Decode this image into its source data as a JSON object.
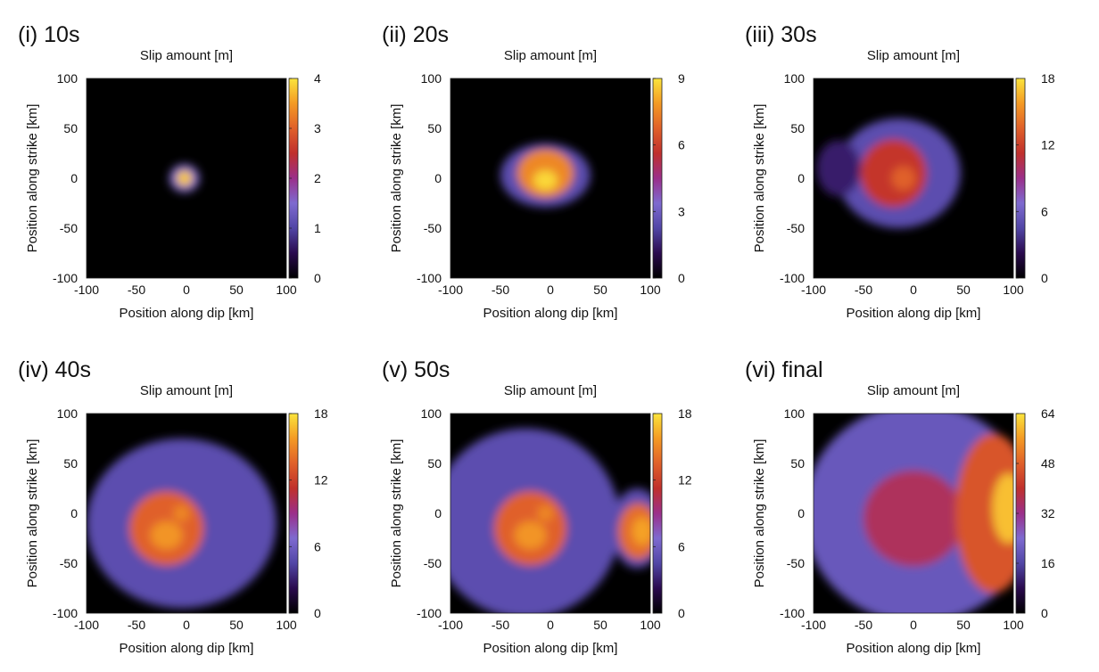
{
  "figure": {
    "colormap": [
      "#000000",
      "#2a0a4e",
      "#5146a6",
      "#7e6ad0",
      "#9b2f8a",
      "#c0302c",
      "#e0602a",
      "#f49a24",
      "#fbe43c"
    ]
  },
  "chart_data": [
    {
      "type": "heatmap",
      "panel_title": "(i) 10s",
      "title": "Slip amount [m]",
      "xlabel": "Position along dip [km]",
      "ylabel": "Position along strike [km]",
      "xlim": [
        -100,
        100
      ],
      "ylim": [
        -100,
        100
      ],
      "xticks": [
        "-100",
        "-50",
        "0",
        "50",
        "100"
      ],
      "yticks": [
        "100",
        "50",
        "0",
        "-50",
        "-100"
      ],
      "colorbar": {
        "range": [
          0,
          4
        ],
        "ticks": [
          "4",
          "3",
          "2",
          "1",
          "0"
        ]
      },
      "features": [
        {
          "kind": "halo",
          "center": [
            -2,
            0
          ],
          "radius": [
            15,
            14
          ],
          "level": 1.5
        },
        {
          "kind": "core",
          "center": [
            -2,
            0
          ],
          "radius": [
            8,
            8
          ],
          "level": 3.8
        }
      ]
    },
    {
      "type": "heatmap",
      "panel_title": "(ii) 20s",
      "title": "Slip amount [m]",
      "xlabel": "Position along dip [km]",
      "ylabel": "Position along strike [km]",
      "xlim": [
        -100,
        100
      ],
      "ylim": [
        -100,
        100
      ],
      "xticks": [
        "-100",
        "-50",
        "0",
        "50",
        "100"
      ],
      "yticks": [
        "100",
        "50",
        "0",
        "-50",
        "-100"
      ],
      "colorbar": {
        "range": [
          0,
          9
        ],
        "ticks": [
          "9",
          "6",
          "3",
          "0"
        ]
      },
      "features": [
        {
          "kind": "halo",
          "center": [
            -5,
            3
          ],
          "radius": [
            45,
            32
          ],
          "level": 2.5
        },
        {
          "kind": "core",
          "center": [
            -5,
            5
          ],
          "radius": [
            28,
            24
          ],
          "level": 7.5
        },
        {
          "kind": "peak",
          "center": [
            -5,
            -2
          ],
          "radius": [
            12,
            10
          ],
          "level": 8.8
        }
      ]
    },
    {
      "type": "heatmap",
      "panel_title": "(iii) 30s",
      "title": "Slip amount [m]",
      "xlabel": "Position along dip [km]",
      "ylabel": "Position along strike [km]",
      "xlim": [
        -100,
        100
      ],
      "ylim": [
        -100,
        100
      ],
      "xticks": [
        "-100",
        "-50",
        "0",
        "50",
        "100"
      ],
      "yticks": [
        "100",
        "50",
        "0",
        "-50",
        "-100"
      ],
      "colorbar": {
        "range": [
          0,
          18
        ],
        "ticks": [
          "18",
          "12",
          "6",
          "0"
        ]
      },
      "features": [
        {
          "kind": "halo",
          "center": [
            -15,
            5
          ],
          "radius": [
            62,
            55
          ],
          "level": 5
        },
        {
          "kind": "halo",
          "center": [
            -75,
            10
          ],
          "radius": [
            22,
            28
          ],
          "level": 3
        },
        {
          "kind": "core",
          "center": [
            -20,
            5
          ],
          "radius": [
            33,
            34
          ],
          "level": 11.5
        },
        {
          "kind": "peak",
          "center": [
            -10,
            0
          ],
          "radius": [
            12,
            12
          ],
          "level": 13.5
        }
      ]
    },
    {
      "type": "heatmap",
      "panel_title": "(iv) 40s",
      "title": "Slip amount [m]",
      "xlabel": "Position along dip [km]",
      "ylabel": "Position along strike [km]",
      "xlim": [
        -100,
        100
      ],
      "ylim": [
        -100,
        100
      ],
      "xticks": [
        "-100",
        "-50",
        "0",
        "50",
        "100"
      ],
      "yticks": [
        "100",
        "50",
        "0",
        "-50",
        "-100"
      ],
      "colorbar": {
        "range": [
          0,
          18
        ],
        "ticks": [
          "18",
          "12",
          "6",
          "0"
        ]
      },
      "features": [
        {
          "kind": "halo",
          "center": [
            -5,
            -10
          ],
          "radius": [
            95,
            85
          ],
          "level": 5
        },
        {
          "kind": "core",
          "center": [
            -20,
            -15
          ],
          "radius": [
            37,
            37
          ],
          "level": 13.5
        },
        {
          "kind": "peak",
          "center": [
            -20,
            -22
          ],
          "radius": [
            16,
            14
          ],
          "level": 15.5
        },
        {
          "kind": "peak",
          "center": [
            -5,
            0
          ],
          "radius": [
            8,
            8
          ],
          "level": 15
        }
      ]
    },
    {
      "type": "heatmap",
      "panel_title": "(v) 50s",
      "title": "Slip amount [m]",
      "xlabel": "Position along dip [km]",
      "ylabel": "Position along strike [km]",
      "xlim": [
        -100,
        100
      ],
      "ylim": [
        -100,
        100
      ],
      "xticks": [
        "-100",
        "-50",
        "0",
        "50",
        "100"
      ],
      "yticks": [
        "100",
        "50",
        "0",
        "-50",
        "-100"
      ],
      "colorbar": {
        "range": [
          0,
          18
        ],
        "ticks": [
          "18",
          "12",
          "6",
          "0"
        ]
      },
      "features": [
        {
          "kind": "halo",
          "center": [
            -25,
            -10
          ],
          "radius": [
            95,
            95
          ],
          "level": 5
        },
        {
          "kind": "core",
          "center": [
            -20,
            -15
          ],
          "radius": [
            36,
            37
          ],
          "level": 13.5
        },
        {
          "kind": "peak",
          "center": [
            -20,
            -22
          ],
          "radius": [
            16,
            14
          ],
          "level": 15.5
        },
        {
          "kind": "peak",
          "center": [
            -5,
            0
          ],
          "radius": [
            8,
            8
          ],
          "level": 15
        },
        {
          "kind": "halo",
          "center": [
            87,
            -15
          ],
          "radius": [
            26,
            40
          ],
          "level": 5
        },
        {
          "kind": "core",
          "center": [
            88,
            -18
          ],
          "radius": [
            20,
            28
          ],
          "level": 14
        },
        {
          "kind": "peak",
          "center": [
            92,
            -18
          ],
          "radius": [
            10,
            14
          ],
          "level": 16
        }
      ]
    },
    {
      "type": "heatmap",
      "panel_title": "(vi) final",
      "title": "Slip amount [m]",
      "xlabel": "Position along dip [km]",
      "ylabel": "Position along strike [km]",
      "xlim": [
        -100,
        100
      ],
      "ylim": [
        -100,
        100
      ],
      "xticks": [
        "-100",
        "-50",
        "0",
        "50",
        "100"
      ],
      "yticks": [
        "100",
        "50",
        "0",
        "-50",
        "-100"
      ],
      "colorbar": {
        "range": [
          0,
          64
        ],
        "ticks": [
          "64",
          "48",
          "32",
          "16",
          "0"
        ]
      },
      "features": [
        {
          "kind": "halo",
          "center": [
            5,
            0
          ],
          "radius": [
            115,
            110
          ],
          "level": 20
        },
        {
          "kind": "core",
          "center": [
            0,
            -5
          ],
          "radius": [
            50,
            48
          ],
          "level": 36
        },
        {
          "kind": "core",
          "center": [
            80,
            0
          ],
          "radius": [
            38,
            80
          ],
          "level": 46
        },
        {
          "kind": "peak",
          "center": [
            95,
            5
          ],
          "radius": [
            16,
            35
          ],
          "level": 60
        }
      ]
    }
  ]
}
